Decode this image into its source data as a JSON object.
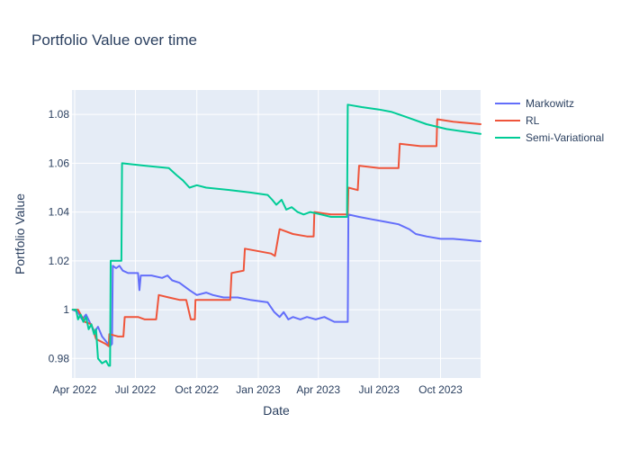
{
  "chart_data": {
    "type": "line",
    "title": "Portfolio Value over time",
    "xlabel": "Date",
    "ylabel": "Portfolio Value",
    "xlim": [
      "2022-03-28",
      "2023-11-30"
    ],
    "ylim": [
      0.972,
      1.09
    ],
    "grid": true,
    "legend_position": "top-right",
    "plot_bg": "#e5ecf6",
    "x_ticks": [
      {
        "value": "2022-04-01",
        "label": "Apr 2022"
      },
      {
        "value": "2022-07-01",
        "label": "Jul 2022"
      },
      {
        "value": "2022-10-01",
        "label": "Oct 2022"
      },
      {
        "value": "2023-01-01",
        "label": "Jan 2023"
      },
      {
        "value": "2023-04-01",
        "label": "Apr 2023"
      },
      {
        "value": "2023-07-01",
        "label": "Jul 2023"
      },
      {
        "value": "2023-10-01",
        "label": "Oct 2023"
      }
    ],
    "y_ticks": [
      {
        "value": 0.98,
        "label": "0.98"
      },
      {
        "value": 1.0,
        "label": "1"
      },
      {
        "value": 1.02,
        "label": "1.02"
      },
      {
        "value": 1.04,
        "label": "1.04"
      },
      {
        "value": 1.06,
        "label": "1.06"
      },
      {
        "value": 1.08,
        "label": "1.08"
      }
    ],
    "series": [
      {
        "name": "Markowitz",
        "color": "#636efa",
        "points": [
          [
            "2022-03-29",
            1.0
          ],
          [
            "2022-04-06",
            0.999
          ],
          [
            "2022-04-12",
            0.996
          ],
          [
            "2022-04-18",
            0.998
          ],
          [
            "2022-04-25",
            0.994
          ],
          [
            "2022-05-01",
            0.991
          ],
          [
            "2022-05-06",
            0.993
          ],
          [
            "2022-05-12",
            0.989
          ],
          [
            "2022-05-18",
            0.987
          ],
          [
            "2022-05-24",
            0.985
          ],
          [
            "2022-05-27",
            0.986
          ],
          [
            "2022-05-28",
            1.018
          ],
          [
            "2022-06-02",
            1.017
          ],
          [
            "2022-06-07",
            1.018
          ],
          [
            "2022-06-12",
            1.016
          ],
          [
            "2022-06-20",
            1.015
          ],
          [
            "2022-07-05",
            1.015
          ],
          [
            "2022-07-07",
            1.008
          ],
          [
            "2022-07-09",
            1.014
          ],
          [
            "2022-07-25",
            1.014
          ],
          [
            "2022-08-10",
            1.013
          ],
          [
            "2022-08-18",
            1.014
          ],
          [
            "2022-08-25",
            1.012
          ],
          [
            "2022-09-05",
            1.011
          ],
          [
            "2022-09-20",
            1.008
          ],
          [
            "2022-10-01",
            1.006
          ],
          [
            "2022-10-15",
            1.007
          ],
          [
            "2022-10-25",
            1.006
          ],
          [
            "2022-11-10",
            1.005
          ],
          [
            "2022-12-01",
            1.005
          ],
          [
            "2022-12-20",
            1.004
          ],
          [
            "2023-01-15",
            1.003
          ],
          [
            "2023-01-20",
            1.001
          ],
          [
            "2023-01-25",
            0.999
          ],
          [
            "2023-02-02",
            0.997
          ],
          [
            "2023-02-08",
            0.999
          ],
          [
            "2023-02-15",
            0.996
          ],
          [
            "2023-02-22",
            0.997
          ],
          [
            "2023-03-05",
            0.996
          ],
          [
            "2023-03-15",
            0.997
          ],
          [
            "2023-03-28",
            0.996
          ],
          [
            "2023-04-10",
            0.997
          ],
          [
            "2023-04-25",
            0.995
          ],
          [
            "2023-05-15",
            0.995
          ],
          [
            "2023-05-16",
            1.039
          ],
          [
            "2023-06-01",
            1.038
          ],
          [
            "2023-06-20",
            1.037
          ],
          [
            "2023-07-10",
            1.036
          ],
          [
            "2023-07-30",
            1.035
          ],
          [
            "2023-08-15",
            1.033
          ],
          [
            "2023-08-25",
            1.031
          ],
          [
            "2023-09-10",
            1.03
          ],
          [
            "2023-10-01",
            1.029
          ],
          [
            "2023-10-20",
            1.029
          ],
          [
            "2023-11-10",
            1.0285
          ],
          [
            "2023-11-30",
            1.028
          ]
        ]
      },
      {
        "name": "RL",
        "color": "#ef553b",
        "points": [
          [
            "2022-03-29",
            1.0
          ],
          [
            "2022-04-06",
            1.0
          ],
          [
            "2022-04-10",
            0.998
          ],
          [
            "2022-04-16",
            0.995
          ],
          [
            "2022-04-26",
            0.994
          ],
          [
            "2022-05-03",
            0.988
          ],
          [
            "2022-05-10",
            0.987
          ],
          [
            "2022-05-17",
            0.986
          ],
          [
            "2022-05-22",
            0.985
          ],
          [
            "2022-05-23",
            0.99
          ],
          [
            "2022-06-05",
            0.989
          ],
          [
            "2022-06-13",
            0.989
          ],
          [
            "2022-06-15",
            0.997
          ],
          [
            "2022-07-05",
            0.997
          ],
          [
            "2022-07-15",
            0.996
          ],
          [
            "2022-08-01",
            0.996
          ],
          [
            "2022-08-05",
            1.006
          ],
          [
            "2022-08-20",
            1.005
          ],
          [
            "2022-09-05",
            1.004
          ],
          [
            "2022-09-15",
            1.004
          ],
          [
            "2022-09-22",
            0.996
          ],
          [
            "2022-09-28",
            0.996
          ],
          [
            "2022-09-29",
            1.004
          ],
          [
            "2022-10-20",
            1.004
          ],
          [
            "2022-11-20",
            1.004
          ],
          [
            "2022-11-22",
            1.015
          ],
          [
            "2022-12-10",
            1.016
          ],
          [
            "2022-12-12",
            1.025
          ],
          [
            "2023-01-20",
            1.023
          ],
          [
            "2023-01-26",
            1.022
          ],
          [
            "2023-02-02",
            1.033
          ],
          [
            "2023-02-22",
            1.031
          ],
          [
            "2023-03-15",
            1.03
          ],
          [
            "2023-03-25",
            1.03
          ],
          [
            "2023-03-26",
            1.04
          ],
          [
            "2023-04-20",
            1.039
          ],
          [
            "2023-05-15",
            1.039
          ],
          [
            "2023-05-16",
            1.05
          ],
          [
            "2023-05-30",
            1.049
          ],
          [
            "2023-06-01",
            1.059
          ],
          [
            "2023-07-01",
            1.058
          ],
          [
            "2023-07-30",
            1.058
          ],
          [
            "2023-08-01",
            1.068
          ],
          [
            "2023-09-01",
            1.067
          ],
          [
            "2023-09-25",
            1.067
          ],
          [
            "2023-09-26",
            1.078
          ],
          [
            "2023-10-20",
            1.077
          ],
          [
            "2023-11-30",
            1.076
          ]
        ]
      },
      {
        "name": "Semi-Variational",
        "color": "#00cc96",
        "points": [
          [
            "2022-03-29",
            1.0
          ],
          [
            "2022-04-03",
            1.0
          ],
          [
            "2022-04-06",
            0.996
          ],
          [
            "2022-04-10",
            0.998
          ],
          [
            "2022-04-14",
            0.995
          ],
          [
            "2022-04-18",
            0.997
          ],
          [
            "2022-04-22",
            0.992
          ],
          [
            "2022-04-26",
            0.994
          ],
          [
            "2022-04-30",
            0.99
          ],
          [
            "2022-05-03",
            0.992
          ],
          [
            "2022-05-06",
            0.98
          ],
          [
            "2022-05-12",
            0.978
          ],
          [
            "2022-05-18",
            0.979
          ],
          [
            "2022-05-22",
            0.977
          ],
          [
            "2022-05-24",
            0.977
          ],
          [
            "2022-05-25",
            1.02
          ],
          [
            "2022-06-10",
            1.02
          ],
          [
            "2022-06-11",
            1.06
          ],
          [
            "2022-07-15",
            1.059
          ],
          [
            "2022-08-20",
            1.058
          ],
          [
            "2022-09-01",
            1.055
          ],
          [
            "2022-09-10",
            1.053
          ],
          [
            "2022-09-20",
            1.05
          ],
          [
            "2022-10-01",
            1.051
          ],
          [
            "2022-10-15",
            1.05
          ],
          [
            "2022-11-20",
            1.049
          ],
          [
            "2022-12-20",
            1.048
          ],
          [
            "2023-01-15",
            1.047
          ],
          [
            "2023-01-22",
            1.045
          ],
          [
            "2023-01-28",
            1.043
          ],
          [
            "2023-02-05",
            1.045
          ],
          [
            "2023-02-12",
            1.041
          ],
          [
            "2023-02-20",
            1.042
          ],
          [
            "2023-03-01",
            1.04
          ],
          [
            "2023-03-10",
            1.039
          ],
          [
            "2023-03-20",
            1.04
          ],
          [
            "2023-04-05",
            1.039
          ],
          [
            "2023-04-20",
            1.038
          ],
          [
            "2023-05-10",
            1.038
          ],
          [
            "2023-05-14",
            1.038
          ],
          [
            "2023-05-15",
            1.084
          ],
          [
            "2023-06-05",
            1.083
          ],
          [
            "2023-07-01",
            1.082
          ],
          [
            "2023-07-20",
            1.081
          ],
          [
            "2023-08-10",
            1.079
          ],
          [
            "2023-09-10",
            1.076
          ],
          [
            "2023-10-10",
            1.074
          ],
          [
            "2023-11-30",
            1.072
          ]
        ]
      }
    ]
  }
}
